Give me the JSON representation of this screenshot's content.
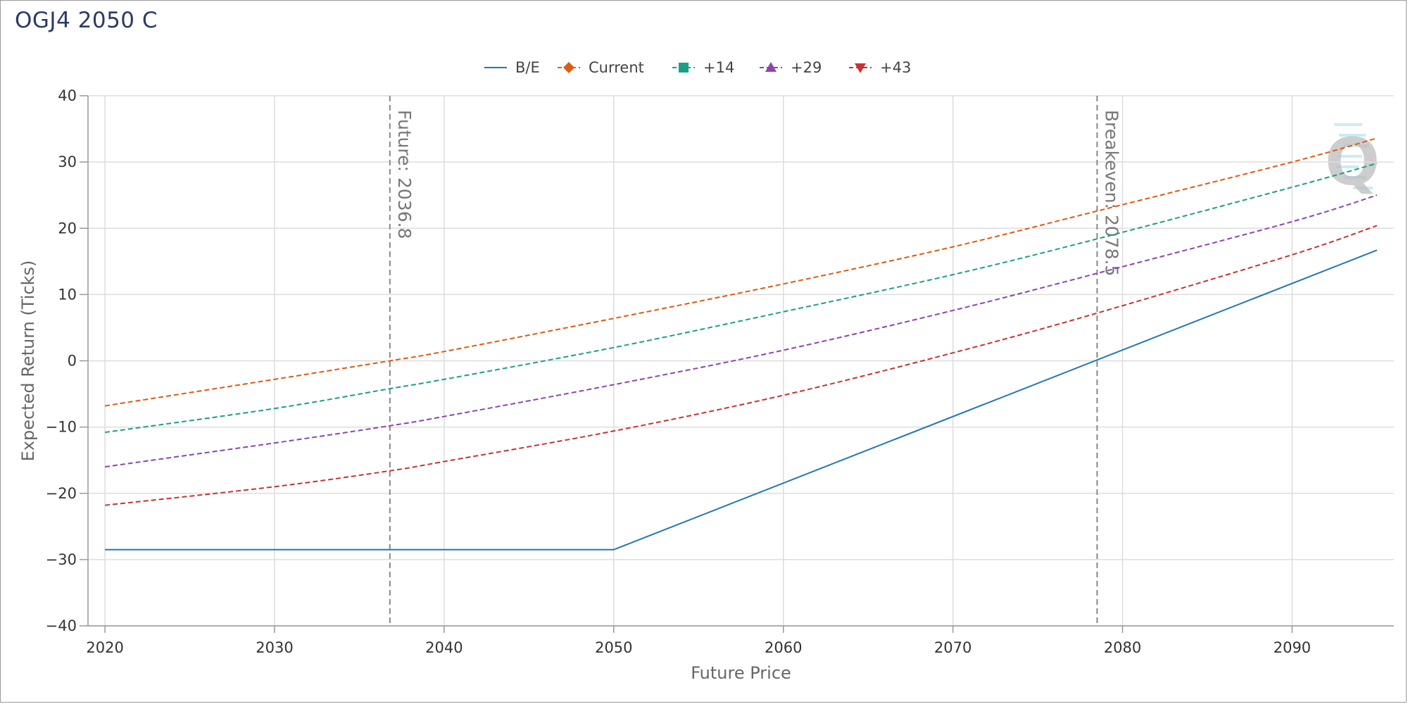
{
  "title": "OGJ4 2050 C",
  "chart_data": {
    "type": "line",
    "xlabel": "Future Price",
    "ylabel": "Expected Return (Ticks)",
    "xlim": [
      2019,
      2096
    ],
    "ylim": [
      -40,
      40
    ],
    "x_ticks": [
      2020,
      2030,
      2040,
      2050,
      2060,
      2070,
      2080,
      2090
    ],
    "y_ticks": [
      40,
      30,
      20,
      10,
      0,
      -10,
      -20,
      -30,
      -40
    ],
    "grid": true,
    "legend_position": "top-center",
    "series": [
      {
        "name": "B/E",
        "color": "#2378b0",
        "dash": "solid",
        "marker": "line",
        "x": [
          2020,
          2050,
          2095
        ],
        "y": [
          -28.5,
          -28.5,
          16.7
        ]
      },
      {
        "name": "Current",
        "color": "#e05a10",
        "dash": "dashed",
        "marker": "diamond",
        "x": [
          2020,
          2030,
          2036.8,
          2040,
          2050,
          2060,
          2070,
          2078.5,
          2090,
          2095
        ],
        "y": [
          -6.8,
          -2.8,
          0.0,
          1.4,
          6.4,
          11.6,
          17.2,
          22.6,
          30.0,
          33.6
        ]
      },
      {
        "name": "+14",
        "color": "#1aa089",
        "dash": "dashed",
        "marker": "square",
        "x": [
          2020,
          2030,
          2036.8,
          2040,
          2050,
          2060,
          2070,
          2078.5,
          2090,
          2095
        ],
        "y": [
          -10.8,
          -7.2,
          -4.2,
          -2.8,
          2.0,
          7.4,
          13.0,
          18.4,
          26.2,
          29.8
        ]
      },
      {
        "name": "+29",
        "color": "#8e44ad",
        "dash": "dashed",
        "marker": "triangle",
        "x": [
          2020,
          2030,
          2036.8,
          2040,
          2050,
          2060,
          2070,
          2078.5,
          2090,
          2095
        ],
        "y": [
          -16.0,
          -12.4,
          -9.8,
          -8.4,
          -3.6,
          1.6,
          7.6,
          13.2,
          21.0,
          25.0
        ]
      },
      {
        "name": "+43",
        "color": "#c83232",
        "dash": "dashed",
        "marker": "triangle-down",
        "x": [
          2020,
          2030,
          2036.8,
          2040,
          2050,
          2060,
          2070,
          2078.5,
          2090,
          2095
        ],
        "y": [
          -21.8,
          -19.0,
          -16.6,
          -15.2,
          -10.6,
          -5.2,
          1.2,
          7.2,
          16.0,
          20.4
        ]
      }
    ],
    "reference_lines": [
      {
        "x": 2036.8,
        "label": "Future: 2036.8"
      },
      {
        "x": 2078.5,
        "label": "Breakeven: 2078.5"
      }
    ],
    "watermark": "Q"
  }
}
